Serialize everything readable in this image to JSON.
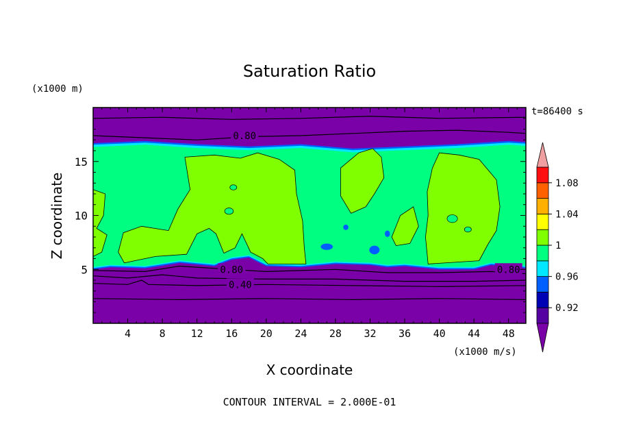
{
  "chart_data": {
    "type": "contour",
    "title": "Saturation Ratio",
    "xlabel": "X coordinate",
    "ylabel": "Z coordinate",
    "x_unit": "(x1000 m/s)",
    "y_unit": "(x1000 m)",
    "time_label": "t=86400 s",
    "footer": "CONTOUR INTERVAL = 2.000E-01",
    "xlim": [
      0,
      50
    ],
    "ylim": [
      0,
      20
    ],
    "x_ticks": [
      4,
      8,
      12,
      16,
      20,
      24,
      28,
      32,
      36,
      40,
      44,
      48
    ],
    "y_ticks": [
      5,
      10,
      15
    ],
    "grid": false,
    "contour_labels": [
      {
        "text": "0.80",
        "x": 17.5,
        "z": 17.4
      },
      {
        "text": "0.80",
        "x": 16.0,
        "z": 5.0
      },
      {
        "text": "0.80",
        "x": 48.0,
        "z": 5.0
      },
      {
        "text": "0.40",
        "x": 17.0,
        "z": 3.6
      }
    ],
    "colorbar": {
      "labels": [
        "1.08",
        "1.04",
        "1",
        "0.96",
        "0.92"
      ],
      "levels": [
        0.9,
        0.92,
        0.94,
        0.96,
        0.98,
        1.0,
        1.02,
        1.04,
        1.06,
        1.08,
        1.1
      ],
      "colors": [
        "#5500a0",
        "#0000b4",
        "#0060ff",
        "#00e8ff",
        "#00ff80",
        "#80ff00",
        "#ffff00",
        "#ffb000",
        "#ff6000",
        "#ff1010"
      ],
      "under_color": "#7a00a8",
      "over_color": "#f0a0a0"
    },
    "fill_colors": {
      "background": "#7a00a8",
      "band_0_98": "#00ff80",
      "band_1_00": "#80ff00",
      "band_0_96": "#00e8ff",
      "band_0_94": "#0060ff"
    }
  }
}
